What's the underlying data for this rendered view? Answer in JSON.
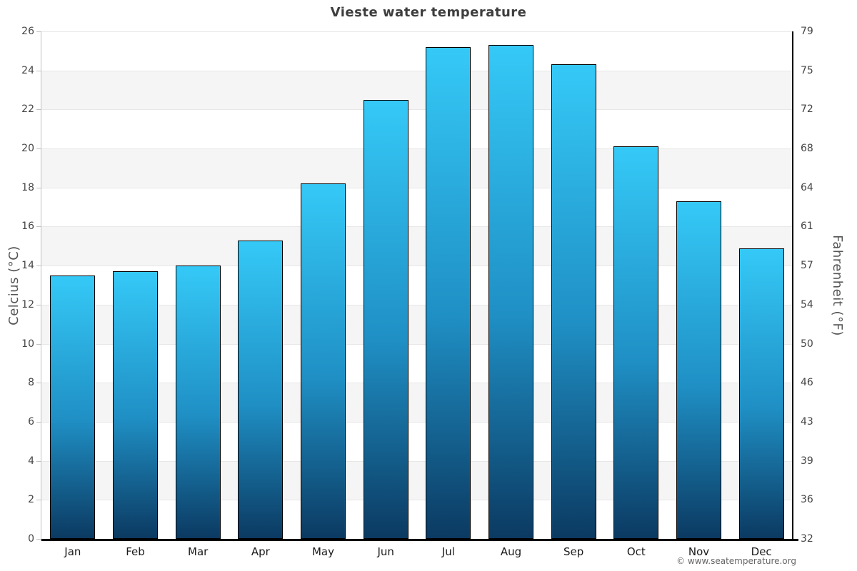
{
  "title": "Vieste water temperature",
  "watermark": "© www.seatemperature.org",
  "chart_data": {
    "type": "bar",
    "title": "Vieste water temperature",
    "categories": [
      "Jan",
      "Feb",
      "Mar",
      "Apr",
      "May",
      "Jun",
      "Jul",
      "Aug",
      "Sep",
      "Oct",
      "Nov",
      "Dec"
    ],
    "values": [
      13.5,
      13.7,
      14.0,
      15.3,
      18.2,
      22.5,
      25.2,
      25.3,
      24.3,
      20.1,
      17.3,
      14.9
    ],
    "unit": "°C",
    "ylabel_left": "Celcius (°C)",
    "ylabel_right": "Fahrenheit (°F)",
    "ylim": [
      0,
      26
    ],
    "yticks_celsius": [
      0,
      2,
      4,
      6,
      8,
      10,
      12,
      14,
      16,
      18,
      20,
      22,
      24,
      26
    ],
    "yticks_fahrenheit": [
      32,
      36,
      39,
      43,
      46,
      50,
      54,
      57,
      61,
      64,
      68,
      72,
      75,
      79
    ],
    "grid": "alternating gray bands every 2°C with thin gridlines",
    "legend_position": "none"
  },
  "colors": {
    "bar_top": "#35c9f7",
    "bar_mid": "#1f8fc4",
    "bar_bottom": "#0b3a62",
    "bar_border": "#000000",
    "band": "#f5f5f5",
    "gridline": "#e7e7e7",
    "title_text": "#3d3d3d",
    "axis_title_text": "#555555",
    "tick_text": "#454545",
    "month_text": "#1a1a1a",
    "watermark_text": "#666666",
    "left_axis_line": "#c0c0c0",
    "right_axis_line": "#000000",
    "x_axis_line": "#000000",
    "background": "#ffffff"
  }
}
